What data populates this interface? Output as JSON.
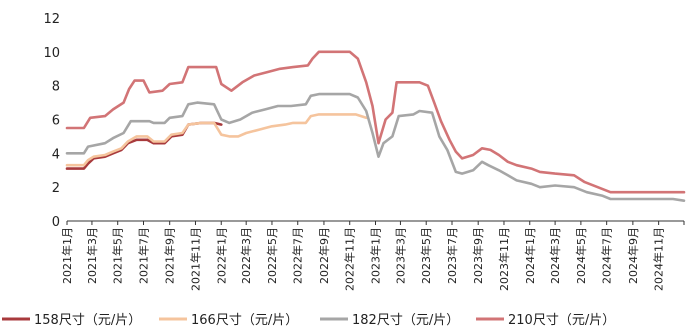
{
  "chart_data": {
    "type": "line",
    "title": "",
    "xlabel": "",
    "ylabel": "",
    "ylim": [
      0,
      12
    ],
    "yticks": [
      0,
      2,
      4,
      6,
      8,
      10,
      12
    ],
    "grid": false,
    "legend_position": "bottom",
    "x_tick_labels": [
      "2021年1月",
      "2021年3月",
      "2021年5月",
      "2021年7月",
      "2021年9月",
      "2021年11月",
      "2022年1月",
      "2022年3月",
      "2022年5月",
      "2022年7月",
      "2022年9月",
      "2022年11月",
      "2023年1月",
      "2023年3月",
      "2023年5月",
      "2023年7月",
      "2023年9月",
      "2023年11月",
      "2024年1月",
      "2024年3月",
      "2024年5月",
      "2024年7月",
      "2024年9月",
      "2024年11月"
    ],
    "x_range": [
      "2021-01-01",
      "2024-12-31"
    ],
    "series": [
      {
        "name": "158尺寸（元/片）",
        "color": "#a83a3c",
        "points": [
          [
            "2021-01-01",
            3.1
          ],
          [
            "2021-02-10",
            3.1
          ],
          [
            "2021-02-20",
            3.4
          ],
          [
            "2021-03-05",
            3.7
          ],
          [
            "2021-04-01",
            3.8
          ],
          [
            "2021-04-20",
            4.0
          ],
          [
            "2021-05-10",
            4.2
          ],
          [
            "2021-05-25",
            4.6
          ],
          [
            "2021-06-15",
            4.8
          ],
          [
            "2021-07-10",
            4.8
          ],
          [
            "2021-07-25",
            4.6
          ],
          [
            "2021-08-20",
            4.6
          ],
          [
            "2021-09-05",
            5.0
          ],
          [
            "2021-10-01",
            5.1
          ],
          [
            "2021-10-15",
            5.7
          ],
          [
            "2021-11-15",
            5.8
          ],
          [
            "2021-12-15",
            5.8
          ],
          [
            "2022-01-01",
            5.7
          ]
        ]
      },
      {
        "name": "166尺寸（元/片）",
        "color": "#f5c49d",
        "points": [
          [
            "2021-01-01",
            3.3
          ],
          [
            "2021-02-10",
            3.3
          ],
          [
            "2021-02-20",
            3.6
          ],
          [
            "2021-03-05",
            3.8
          ],
          [
            "2021-04-01",
            3.9
          ],
          [
            "2021-04-20",
            4.1
          ],
          [
            "2021-05-10",
            4.3
          ],
          [
            "2021-05-25",
            4.7
          ],
          [
            "2021-06-15",
            5.0
          ],
          [
            "2021-07-10",
            5.0
          ],
          [
            "2021-07-25",
            4.7
          ],
          [
            "2021-08-20",
            4.7
          ],
          [
            "2021-09-05",
            5.1
          ],
          [
            "2021-10-01",
            5.2
          ],
          [
            "2021-10-15",
            5.7
          ],
          [
            "2021-11-15",
            5.8
          ],
          [
            "2021-12-15",
            5.8
          ],
          [
            "2022-01-01",
            5.1
          ],
          [
            "2022-01-20",
            5.0
          ],
          [
            "2022-02-10",
            5.0
          ],
          [
            "2022-03-01",
            5.2
          ],
          [
            "2022-04-01",
            5.4
          ],
          [
            "2022-05-01",
            5.6
          ],
          [
            "2022-06-01",
            5.7
          ],
          [
            "2022-06-20",
            5.8
          ],
          [
            "2022-07-20",
            5.8
          ],
          [
            "2022-08-01",
            6.2
          ],
          [
            "2022-08-20",
            6.3
          ],
          [
            "2022-11-15",
            6.3
          ],
          [
            "2022-12-10",
            6.1
          ]
        ]
      },
      {
        "name": "182尺寸（元/片）",
        "color": "#a6a6a6",
        "points": [
          [
            "2021-01-01",
            4.0
          ],
          [
            "2021-02-10",
            4.0
          ],
          [
            "2021-02-20",
            4.4
          ],
          [
            "2021-04-01",
            4.6
          ],
          [
            "2021-04-20",
            4.9
          ],
          [
            "2021-05-15",
            5.2
          ],
          [
            "2021-06-01",
            5.9
          ],
          [
            "2021-07-15",
            5.9
          ],
          [
            "2021-07-25",
            5.8
          ],
          [
            "2021-08-20",
            5.8
          ],
          [
            "2021-09-01",
            6.1
          ],
          [
            "2021-10-01",
            6.2
          ],
          [
            "2021-10-15",
            6.9
          ],
          [
            "2021-11-05",
            7.0
          ],
          [
            "2021-12-15",
            6.9
          ],
          [
            "2022-01-01",
            6.0
          ],
          [
            "2022-01-20",
            5.8
          ],
          [
            "2022-02-15",
            6.0
          ],
          [
            "2022-03-15",
            6.4
          ],
          [
            "2022-04-15",
            6.6
          ],
          [
            "2022-05-15",
            6.8
          ],
          [
            "2022-06-15",
            6.8
          ],
          [
            "2022-07-20",
            6.9
          ],
          [
            "2022-08-01",
            7.4
          ],
          [
            "2022-08-20",
            7.5
          ],
          [
            "2022-11-01",
            7.5
          ],
          [
            "2022-11-20",
            7.3
          ],
          [
            "2022-12-10",
            6.5
          ],
          [
            "2022-12-25",
            5.2
          ],
          [
            "2023-01-08",
            3.8
          ],
          [
            "2023-01-20",
            4.6
          ],
          [
            "2023-02-10",
            5.0
          ],
          [
            "2023-02-25",
            6.2
          ],
          [
            "2023-04-01",
            6.3
          ],
          [
            "2023-04-15",
            6.5
          ],
          [
            "2023-05-15",
            6.4
          ],
          [
            "2023-06-01",
            5.0
          ],
          [
            "2023-06-20",
            4.2
          ],
          [
            "2023-07-10",
            2.9
          ],
          [
            "2023-07-25",
            2.8
          ],
          [
            "2023-08-20",
            3.0
          ],
          [
            "2023-09-10",
            3.5
          ],
          [
            "2023-09-25",
            3.3
          ],
          [
            "2023-10-20",
            3.0
          ],
          [
            "2023-11-10",
            2.7
          ],
          [
            "2023-12-01",
            2.4
          ],
          [
            "2024-01-05",
            2.2
          ],
          [
            "2024-01-25",
            2.0
          ],
          [
            "2024-03-01",
            2.1
          ],
          [
            "2024-04-15",
            2.0
          ],
          [
            "2024-05-15",
            1.7
          ],
          [
            "2024-06-20",
            1.5
          ],
          [
            "2024-07-10",
            1.3
          ],
          [
            "2024-12-05",
            1.3
          ],
          [
            "2024-12-31",
            1.2
          ]
        ]
      },
      {
        "name": "210尺寸（元/片）",
        "color": "#d27476",
        "points": [
          [
            "2021-01-01",
            5.5
          ],
          [
            "2021-02-10",
            5.5
          ],
          [
            "2021-02-25",
            6.1
          ],
          [
            "2021-04-01",
            6.2
          ],
          [
            "2021-04-20",
            6.6
          ],
          [
            "2021-05-15",
            7.0
          ],
          [
            "2021-05-28",
            7.8
          ],
          [
            "2021-06-10",
            8.3
          ],
          [
            "2021-07-01",
            8.3
          ],
          [
            "2021-07-15",
            7.6
          ],
          [
            "2021-08-15",
            7.7
          ],
          [
            "2021-09-01",
            8.1
          ],
          [
            "2021-10-01",
            8.2
          ],
          [
            "2021-10-15",
            9.1
          ],
          [
            "2021-12-20",
            9.1
          ],
          [
            "2022-01-01",
            8.1
          ],
          [
            "2022-01-25",
            7.7
          ],
          [
            "2022-02-20",
            8.2
          ],
          [
            "2022-03-20",
            8.6
          ],
          [
            "2022-04-20",
            8.8
          ],
          [
            "2022-05-20",
            9.0
          ],
          [
            "2022-06-20",
            9.1
          ],
          [
            "2022-07-25",
            9.2
          ],
          [
            "2022-08-05",
            9.6
          ],
          [
            "2022-08-20",
            10.0
          ],
          [
            "2022-11-01",
            10.0
          ],
          [
            "2022-11-20",
            9.6
          ],
          [
            "2022-12-10",
            8.2
          ],
          [
            "2022-12-25",
            6.8
          ],
          [
            "2023-01-08",
            4.6
          ],
          [
            "2023-01-25",
            6.0
          ],
          [
            "2023-02-10",
            6.4
          ],
          [
            "2023-02-20",
            8.2
          ],
          [
            "2023-04-15",
            8.2
          ],
          [
            "2023-05-05",
            8.0
          ],
          [
            "2023-05-20",
            7.0
          ],
          [
            "2023-06-05",
            5.9
          ],
          [
            "2023-06-25",
            4.8
          ],
          [
            "2023-07-10",
            4.1
          ],
          [
            "2023-07-25",
            3.7
          ],
          [
            "2023-08-20",
            3.9
          ],
          [
            "2023-09-10",
            4.3
          ],
          [
            "2023-09-30",
            4.2
          ],
          [
            "2023-10-20",
            3.9
          ],
          [
            "2023-11-10",
            3.5
          ],
          [
            "2023-12-01",
            3.3
          ],
          [
            "2024-01-05",
            3.1
          ],
          [
            "2024-01-25",
            2.9
          ],
          [
            "2024-03-01",
            2.8
          ],
          [
            "2024-04-15",
            2.7
          ],
          [
            "2024-05-10",
            2.3
          ],
          [
            "2024-06-10",
            2.0
          ],
          [
            "2024-07-10",
            1.7
          ],
          [
            "2024-12-31",
            1.7
          ]
        ]
      }
    ]
  }
}
